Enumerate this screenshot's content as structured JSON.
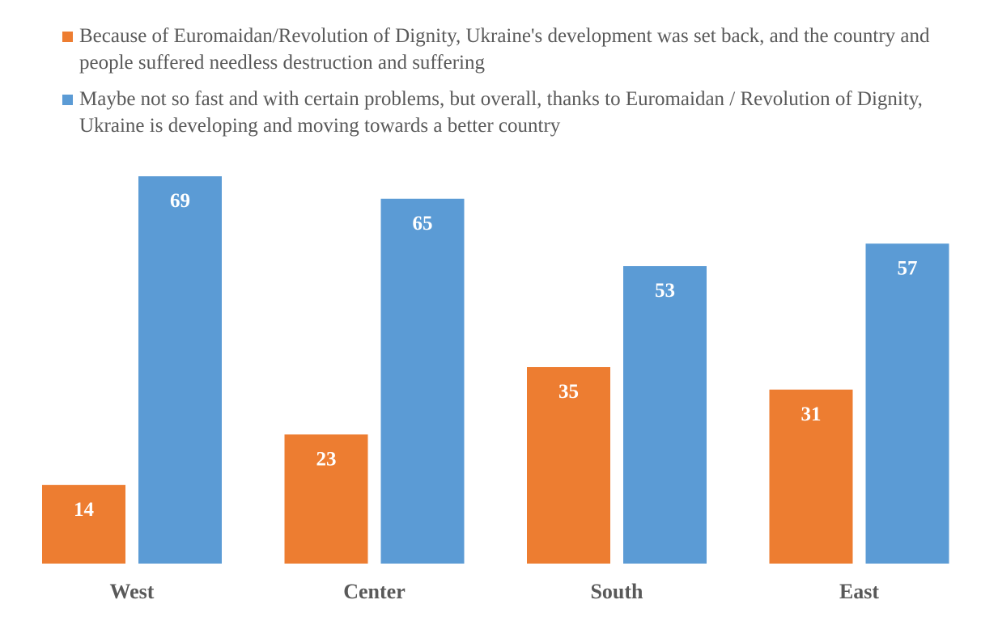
{
  "chart_data": {
    "type": "bar",
    "title": "",
    "xlabel": "",
    "ylabel": "",
    "ylim": [
      0,
      69
    ],
    "grid": false,
    "legend_position": "top",
    "categories": [
      "West",
      "Center",
      "South",
      "East"
    ],
    "series": [
      {
        "name": "Because of Euromaidan/Revolution of Dignity, Ukraine's development was set back, and the country and people suffered needless destruction and suffering",
        "color": "#ED7D31",
        "values": [
          14,
          23,
          35,
          31
        ]
      },
      {
        "name": "Maybe not so fast and with certain problems, but overall, thanks to Euromaidan / Revolution of Dignity, Ukraine is developing and moving towards a better country",
        "color": "#5B9BD5",
        "values": [
          69,
          65,
          53,
          57
        ]
      }
    ],
    "data_labels": true
  }
}
